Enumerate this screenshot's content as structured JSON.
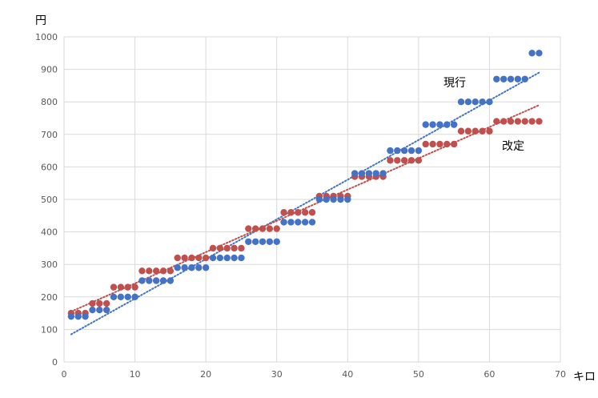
{
  "chart_data": {
    "type": "scatter",
    "ylabel": "円",
    "xlabel": "キロ",
    "xlim": [
      0,
      70
    ],
    "ylim": [
      0,
      1000
    ],
    "x_ticks": [
      "0",
      "10",
      "20",
      "30",
      "40",
      "50",
      "60",
      "70"
    ],
    "y_ticks": [
      "0",
      "100",
      "200",
      "300",
      "400",
      "500",
      "600",
      "700",
      "800",
      "900",
      "1000"
    ],
    "grid": true,
    "legend": "none",
    "series": [
      {
        "name": "現行",
        "color": "#4472c4",
        "trendline": {
          "x": [
            1,
            67
          ],
          "y": [
            85,
            890
          ]
        },
        "points": [
          [
            1,
            140
          ],
          [
            2,
            140
          ],
          [
            3,
            140
          ],
          [
            4,
            160
          ],
          [
            5,
            160
          ],
          [
            6,
            160
          ],
          [
            7,
            200
          ],
          [
            8,
            200
          ],
          [
            9,
            200
          ],
          [
            10,
            200
          ],
          [
            11,
            250
          ],
          [
            12,
            250
          ],
          [
            13,
            250
          ],
          [
            14,
            250
          ],
          [
            15,
            250
          ],
          [
            16,
            290
          ],
          [
            17,
            290
          ],
          [
            18,
            290
          ],
          [
            19,
            290
          ],
          [
            20,
            290
          ],
          [
            21,
            320
          ],
          [
            22,
            320
          ],
          [
            23,
            320
          ],
          [
            24,
            320
          ],
          [
            25,
            320
          ],
          [
            26,
            370
          ],
          [
            27,
            370
          ],
          [
            28,
            370
          ],
          [
            29,
            370
          ],
          [
            30,
            370
          ],
          [
            31,
            430
          ],
          [
            32,
            430
          ],
          [
            33,
            430
          ],
          [
            34,
            430
          ],
          [
            35,
            430
          ],
          [
            36,
            500
          ],
          [
            37,
            500
          ],
          [
            38,
            500
          ],
          [
            39,
            500
          ],
          [
            40,
            500
          ],
          [
            41,
            580
          ],
          [
            42,
            580
          ],
          [
            43,
            580
          ],
          [
            44,
            580
          ],
          [
            45,
            580
          ],
          [
            46,
            650
          ],
          [
            47,
            650
          ],
          [
            48,
            650
          ],
          [
            49,
            650
          ],
          [
            50,
            650
          ],
          [
            51,
            730
          ],
          [
            52,
            730
          ],
          [
            53,
            730
          ],
          [
            54,
            730
          ],
          [
            55,
            730
          ],
          [
            56,
            800
          ],
          [
            57,
            800
          ],
          [
            58,
            800
          ],
          [
            59,
            800
          ],
          [
            60,
            800
          ],
          [
            61,
            870
          ],
          [
            62,
            870
          ],
          [
            63,
            870
          ],
          [
            64,
            870
          ],
          [
            65,
            870
          ],
          [
            66,
            950
          ],
          [
            67,
            950
          ]
        ]
      },
      {
        "name": "改定",
        "color": "#c0504d",
        "trendline": {
          "x": [
            1,
            67
          ],
          "y": [
            155,
            790
          ]
        },
        "points": [
          [
            1,
            150
          ],
          [
            2,
            150
          ],
          [
            3,
            150
          ],
          [
            4,
            180
          ],
          [
            5,
            180
          ],
          [
            6,
            180
          ],
          [
            7,
            230
          ],
          [
            8,
            230
          ],
          [
            9,
            230
          ],
          [
            10,
            230
          ],
          [
            11,
            280
          ],
          [
            12,
            280
          ],
          [
            13,
            280
          ],
          [
            14,
            280
          ],
          [
            15,
            280
          ],
          [
            16,
            320
          ],
          [
            17,
            320
          ],
          [
            18,
            320
          ],
          [
            19,
            320
          ],
          [
            20,
            320
          ],
          [
            21,
            350
          ],
          [
            22,
            350
          ],
          [
            23,
            350
          ],
          [
            24,
            350
          ],
          [
            25,
            350
          ],
          [
            26,
            410
          ],
          [
            27,
            410
          ],
          [
            28,
            410
          ],
          [
            29,
            410
          ],
          [
            30,
            410
          ],
          [
            31,
            460
          ],
          [
            32,
            460
          ],
          [
            33,
            460
          ],
          [
            34,
            460
          ],
          [
            35,
            460
          ],
          [
            36,
            510
          ],
          [
            37,
            510
          ],
          [
            38,
            510
          ],
          [
            39,
            510
          ],
          [
            40,
            510
          ],
          [
            41,
            570
          ],
          [
            42,
            570
          ],
          [
            43,
            570
          ],
          [
            44,
            570
          ],
          [
            45,
            570
          ],
          [
            46,
            620
          ],
          [
            47,
            620
          ],
          [
            48,
            620
          ],
          [
            49,
            620
          ],
          [
            50,
            620
          ],
          [
            51,
            670
          ],
          [
            52,
            670
          ],
          [
            53,
            670
          ],
          [
            54,
            670
          ],
          [
            55,
            670
          ],
          [
            56,
            710
          ],
          [
            57,
            710
          ],
          [
            58,
            710
          ],
          [
            59,
            710
          ],
          [
            60,
            710
          ],
          [
            61,
            740
          ],
          [
            62,
            740
          ],
          [
            63,
            740
          ],
          [
            64,
            740
          ],
          [
            65,
            740
          ],
          [
            66,
            740
          ],
          [
            67,
            740
          ]
        ]
      }
    ]
  }
}
